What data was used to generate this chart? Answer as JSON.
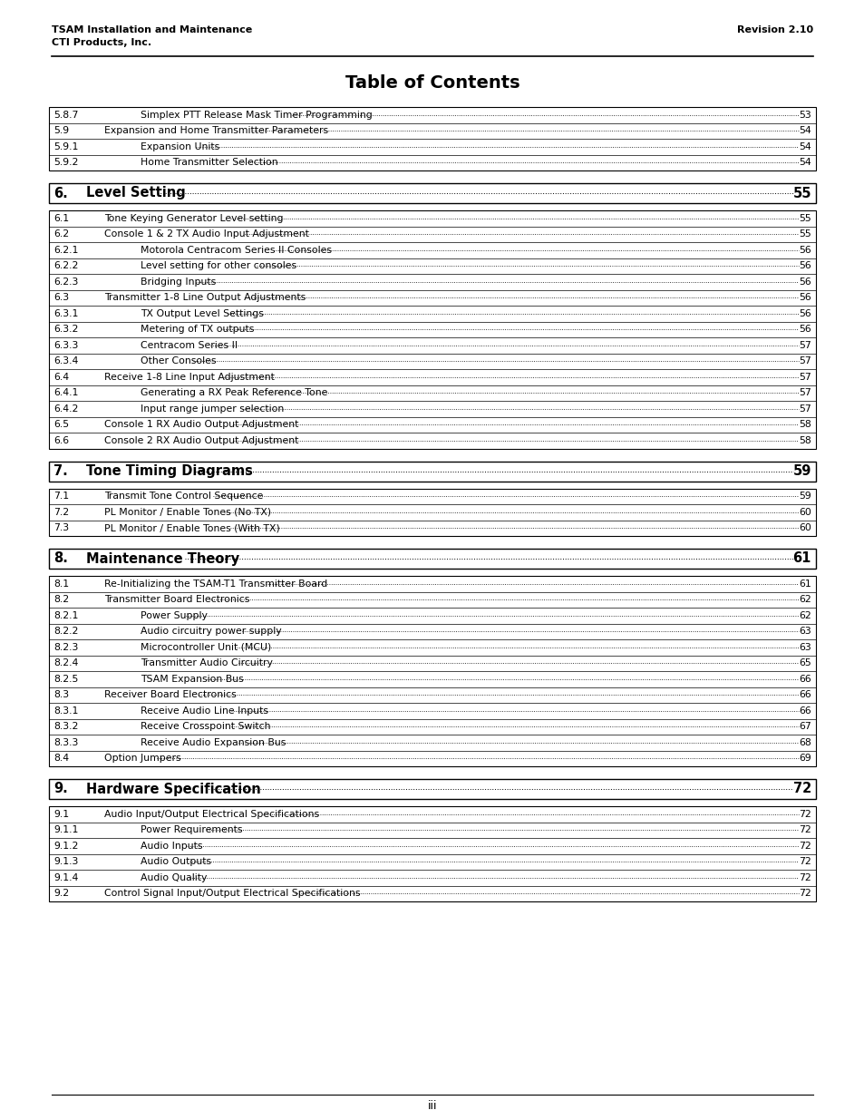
{
  "header_left_line1": "TSAM Installation and Maintenance",
  "header_left_line2": "CTI Products, Inc.",
  "header_right": "Revision 2.10",
  "title": "Table of Contents",
  "footer": "iii",
  "background_color": "#ffffff",
  "text_color": "#000000",
  "sections": [
    {
      "type": "table",
      "rows": [
        {
          "num": "5.8.7",
          "indent": 1,
          "text": "Simplex PTT Release Mask Timer Programming",
          "page": "53"
        },
        {
          "num": "5.9",
          "indent": 0,
          "text": "Expansion and Home Transmitter Parameters",
          "page": "54"
        },
        {
          "num": "5.9.1",
          "indent": 1,
          "text": "Expansion Units",
          "page": "54"
        },
        {
          "num": "5.9.2",
          "indent": 1,
          "text": "Home Transmitter Selection",
          "page": "54"
        }
      ]
    },
    {
      "type": "header",
      "num": "6.",
      "text": "Level Setting",
      "page": "55"
    },
    {
      "type": "table",
      "rows": [
        {
          "num": "6.1",
          "indent": 0,
          "text": "Tone Keying Generator Level setting",
          "page": "55"
        },
        {
          "num": "6.2",
          "indent": 0,
          "text": "Console 1 & 2 TX Audio Input Adjustment",
          "page": "55"
        },
        {
          "num": "6.2.1",
          "indent": 1,
          "text": "Motorola Centracom Series II Consoles",
          "page": "56"
        },
        {
          "num": "6.2.2",
          "indent": 1,
          "text": "Level setting for other consoles",
          "page": "56"
        },
        {
          "num": "6.2.3",
          "indent": 1,
          "text": "Bridging Inputs",
          "page": "56"
        },
        {
          "num": "6.3",
          "indent": 0,
          "text": "Transmitter 1-8 Line Output Adjustments",
          "page": "56"
        },
        {
          "num": "6.3.1",
          "indent": 1,
          "text": "TX Output Level Settings",
          "page": "56"
        },
        {
          "num": "6.3.2",
          "indent": 1,
          "text": "Metering of TX outputs",
          "page": "56"
        },
        {
          "num": "6.3.3",
          "indent": 1,
          "text": "Centracom Series II",
          "page": "57"
        },
        {
          "num": "6.3.4",
          "indent": 1,
          "text": "Other Consoles",
          "page": "57"
        },
        {
          "num": "6.4",
          "indent": 0,
          "text": "Receive 1-8 Line Input Adjustment",
          "page": "57"
        },
        {
          "num": "6.4.1",
          "indent": 1,
          "text": "Generating a RX Peak Reference Tone",
          "page": "57"
        },
        {
          "num": "6.4.2",
          "indent": 1,
          "text": "Input range jumper selection",
          "page": "57"
        },
        {
          "num": "6.5",
          "indent": 0,
          "text": "Console 1 RX Audio Output Adjustment",
          "page": "58"
        },
        {
          "num": "6.6",
          "indent": 0,
          "text": "Console 2 RX Audio Output Adjustment",
          "page": "58"
        }
      ]
    },
    {
      "type": "header",
      "num": "7.",
      "text": "Tone Timing Diagrams",
      "page": "59"
    },
    {
      "type": "table",
      "rows": [
        {
          "num": "7.1",
          "indent": 0,
          "text": "Transmit Tone Control Sequence",
          "page": "59"
        },
        {
          "num": "7.2",
          "indent": 0,
          "text": "PL Monitor / Enable Tones (No TX)",
          "page": "60"
        },
        {
          "num": "7.3",
          "indent": 0,
          "text": "PL Monitor / Enable Tones (With TX)",
          "page": "60"
        }
      ]
    },
    {
      "type": "header",
      "num": "8.",
      "text": "Maintenance Theory",
      "page": "61"
    },
    {
      "type": "table",
      "rows": [
        {
          "num": "8.1",
          "indent": 0,
          "text": "Re-Initializing the TSAM-T1 Transmitter Board",
          "page": "61"
        },
        {
          "num": "8.2",
          "indent": 0,
          "text": "Transmitter Board Electronics",
          "page": "62"
        },
        {
          "num": "8.2.1",
          "indent": 1,
          "text": "Power Supply",
          "page": "62"
        },
        {
          "num": "8.2.2",
          "indent": 1,
          "text": "Audio circuitry power supply",
          "page": "63"
        },
        {
          "num": "8.2.3",
          "indent": 1,
          "text": "Microcontroller Unit (MCU)",
          "page": "63"
        },
        {
          "num": "8.2.4",
          "indent": 1,
          "text": "Transmitter Audio Circuitry",
          "page": "65"
        },
        {
          "num": "8.2.5",
          "indent": 1,
          "text": "TSAM Expansion Bus",
          "page": "66"
        },
        {
          "num": "8.3",
          "indent": 0,
          "text": "Receiver Board Electronics",
          "page": "66"
        },
        {
          "num": "8.3.1",
          "indent": 1,
          "text": "Receive Audio Line Inputs",
          "page": "66"
        },
        {
          "num": "8.3.2",
          "indent": 1,
          "text": "Receive Crosspoint Switch",
          "page": "67"
        },
        {
          "num": "8.3.3",
          "indent": 1,
          "text": "Receive Audio Expansion Bus",
          "page": "68"
        },
        {
          "num": "8.4",
          "indent": 0,
          "text": "Option Jumpers",
          "page": "69"
        }
      ]
    },
    {
      "type": "header",
      "num": "9.",
      "text": "Hardware Specification",
      "page": "72"
    },
    {
      "type": "table",
      "rows": [
        {
          "num": "9.1",
          "indent": 0,
          "text": "Audio Input/Output Electrical Specifications",
          "page": "72"
        },
        {
          "num": "9.1.1",
          "indent": 1,
          "text": "Power Requirements",
          "page": "72"
        },
        {
          "num": "9.1.2",
          "indent": 1,
          "text": "Audio Inputs",
          "page": "72"
        },
        {
          "num": "9.1.3",
          "indent": 1,
          "text": "Audio Outputs",
          "page": "72"
        },
        {
          "num": "9.1.4",
          "indent": 1,
          "text": "Audio Quality",
          "page": "72"
        },
        {
          "num": "9.2",
          "indent": 0,
          "text": "Control Signal Input/Output Electrical Specifications",
          "page": "72"
        }
      ]
    }
  ]
}
